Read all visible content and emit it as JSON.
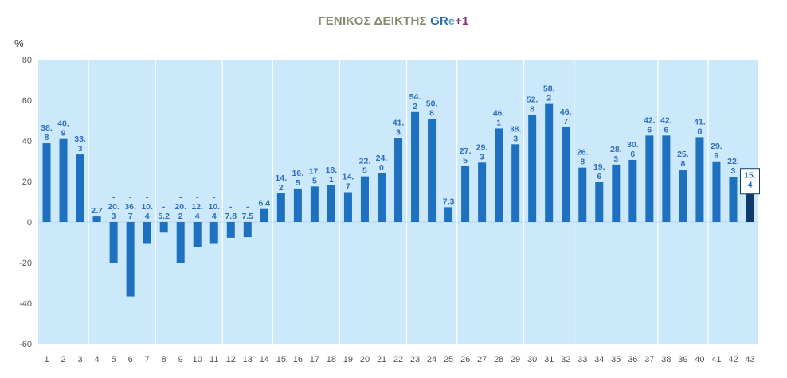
{
  "title": {
    "part1": "ΓΕΝΙΚΟΣ ΔΕΙΚΤΗΣ ",
    "part2": "GR",
    "part3": "e",
    "part4": "+1"
  },
  "chart_data": {
    "type": "bar",
    "ylabel": "%",
    "xlabel": "",
    "ylim": [
      -60,
      80
    ],
    "yticks": [
      80,
      60,
      40,
      20,
      0,
      -20,
      -40,
      -60
    ],
    "grid": false,
    "categories": [
      "1",
      "2",
      "3",
      "4",
      "5",
      "6",
      "7",
      "8",
      "9",
      "10",
      "11",
      "12",
      "13",
      "14",
      "15",
      "16",
      "17",
      "18",
      "19",
      "20",
      "21",
      "22",
      "23",
      "24",
      "25",
      "26",
      "27",
      "28",
      "29",
      "30",
      "31",
      "32",
      "33",
      "34",
      "35",
      "36",
      "37",
      "38",
      "39",
      "40",
      "41",
      "42",
      "43"
    ],
    "values": [
      38.8,
      40.9,
      33.3,
      2.7,
      -20.3,
      -36.7,
      -10.4,
      -5.2,
      -20.2,
      -12.4,
      -10.4,
      -7.8,
      -7.5,
      6.4,
      14.2,
      16.5,
      17.5,
      18.1,
      14.7,
      22.5,
      24.0,
      41.3,
      54.2,
      50.8,
      7.3,
      27.5,
      29.3,
      46.1,
      38.3,
      52.8,
      58.2,
      46.7,
      26.8,
      19.6,
      28.3,
      30.6,
      42.6,
      42.6,
      25.8,
      41.8,
      29.9,
      22.3,
      15.4
    ],
    "data_labels": [
      [
        "38.",
        "8"
      ],
      [
        "40.",
        "9"
      ],
      [
        "33.",
        "3"
      ],
      [
        "2.7"
      ],
      [
        "-",
        "20.",
        "3"
      ],
      [
        "-",
        "36.",
        "7"
      ],
      [
        "-",
        "10.",
        "4"
      ],
      [
        "-",
        "5.2"
      ],
      [
        "-",
        "20.",
        "2"
      ],
      [
        "-",
        "12.",
        "4"
      ],
      [
        "-",
        "10.",
        "4"
      ],
      [
        "-",
        "7.8"
      ],
      [
        "-",
        "7.5"
      ],
      [
        "6.4"
      ],
      [
        "14.",
        "2"
      ],
      [
        "16.",
        "5"
      ],
      [
        "17.",
        "5"
      ],
      [
        "18.",
        "1"
      ],
      [
        "14.",
        "7"
      ],
      [
        "22.",
        "5"
      ],
      [
        "24.",
        "0"
      ],
      [
        "41.",
        "3"
      ],
      [
        "54.",
        "2"
      ],
      [
        "50.",
        "8"
      ],
      [
        "7.3"
      ],
      [
        "27.",
        "5"
      ],
      [
        "29.",
        "3"
      ],
      [
        "46.",
        "1"
      ],
      [
        "38.",
        "3"
      ],
      [
        "52.",
        "8"
      ],
      [
        "58.",
        "2"
      ],
      [
        "46.",
        "7"
      ],
      [
        "26.",
        "8"
      ],
      [
        "19.",
        "6"
      ],
      [
        "28.",
        "3"
      ],
      [
        "30.",
        "6"
      ],
      [
        "42.",
        "6"
      ],
      [
        "42.",
        "6"
      ],
      [
        "25.",
        "8"
      ],
      [
        "41.",
        "8"
      ],
      [
        "29.",
        "9"
      ],
      [
        "22.",
        "3"
      ],
      [
        "15.",
        "4"
      ]
    ],
    "highlight_index": 42,
    "separator_after": [
      3,
      7,
      11,
      14,
      18,
      22,
      25,
      29,
      32,
      37,
      40
    ],
    "colors": {
      "plot_background": "#cce8fb",
      "bar": "#1d71c0",
      "bar_highlight": "#123a6e",
      "label": "#2f6fbd",
      "separator": "#ffffff"
    }
  }
}
